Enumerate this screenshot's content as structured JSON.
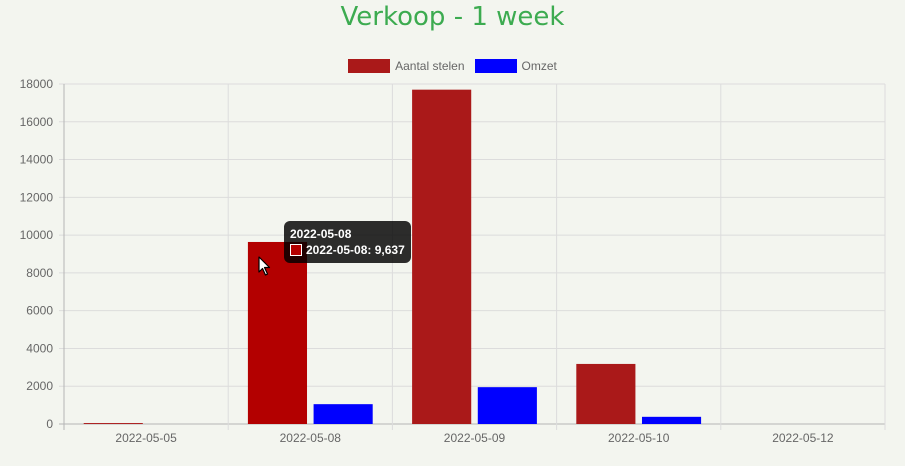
{
  "chart_data": {
    "type": "bar",
    "title": "Verkoop - 1 week",
    "categories": [
      "2022-05-05",
      "2022-05-08",
      "2022-05-09",
      "2022-05-10",
      "2022-05-12"
    ],
    "series": [
      {
        "name": "Aantal stelen",
        "color": "#aa1919",
        "values": [
          50,
          9637,
          17700,
          3180,
          0
        ]
      },
      {
        "name": "Omzet",
        "color": "#0000ff",
        "values": [
          0,
          1050,
          1950,
          380,
          0
        ]
      }
    ],
    "ylim": [
      0,
      18000
    ],
    "yticks": [
      0,
      2000,
      4000,
      6000,
      8000,
      10000,
      12000,
      14000,
      16000,
      18000
    ],
    "grid": true,
    "legend_position": "top",
    "highlight": {
      "series": 0,
      "index": 1,
      "color": "#b30000"
    },
    "title_color": "#3cab50"
  },
  "tooltip": {
    "title": "2022-05-08",
    "label": "2022-05-08: 9,637"
  }
}
